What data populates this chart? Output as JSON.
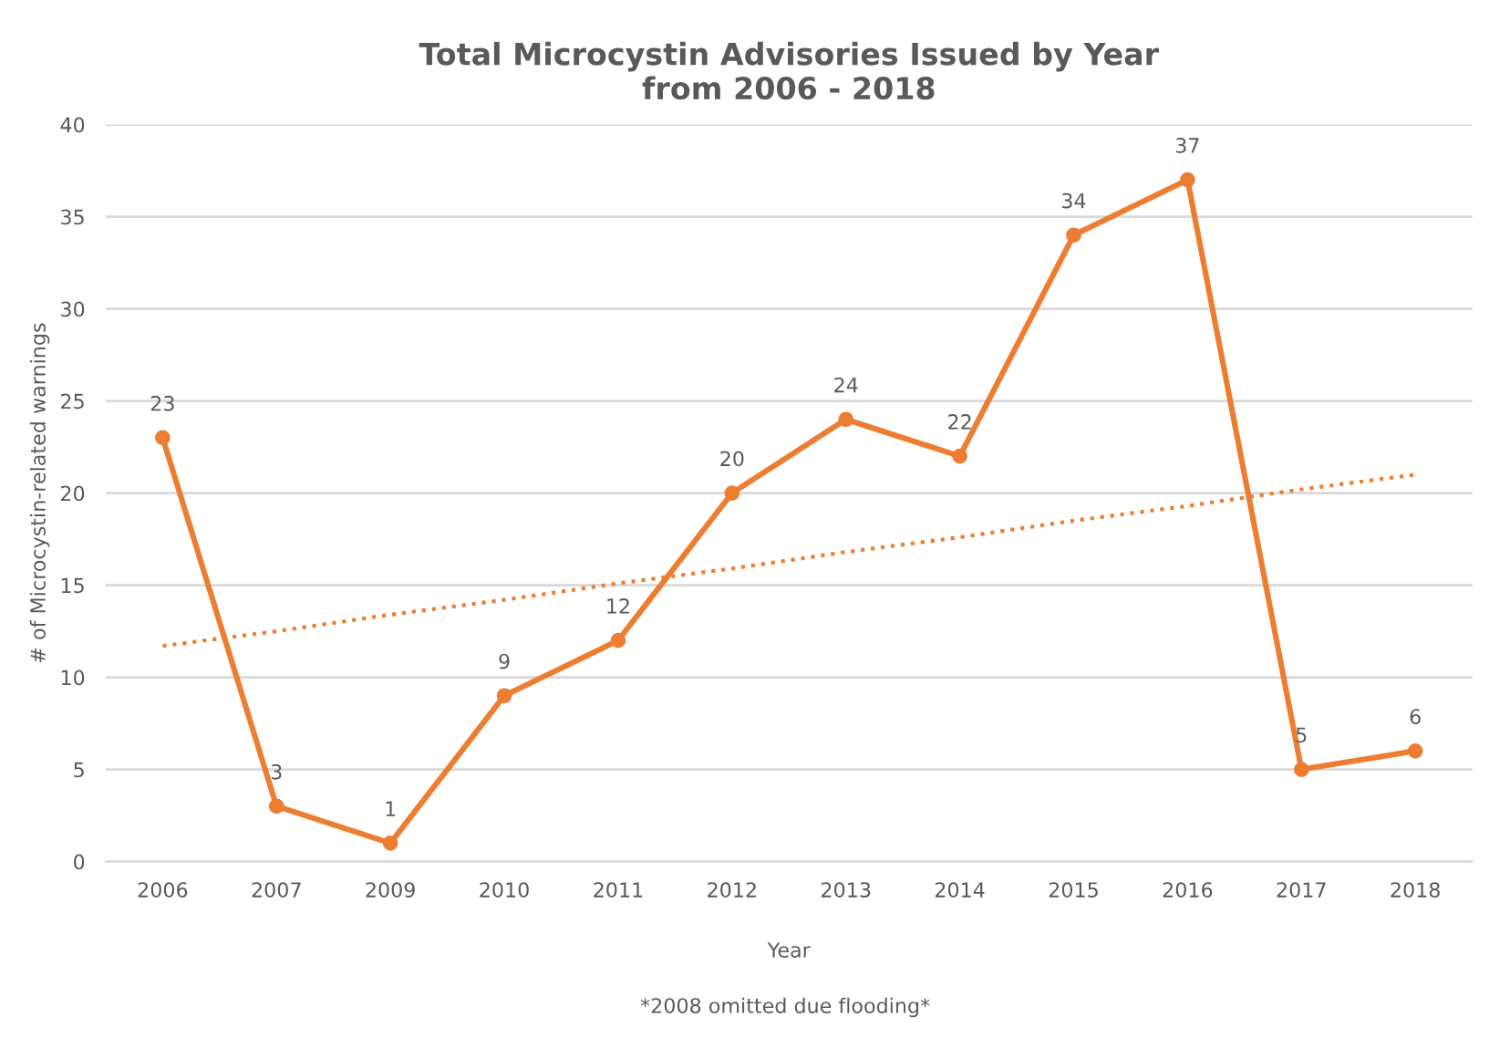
{
  "chart_data": {
    "type": "line",
    "title": "Total Microcystin Advisories Issued by Year\nfrom 2006 - 2018",
    "xlabel": "Year",
    "ylabel": "# of Microcystin-related warnings",
    "categories": [
      "2006",
      "2007",
      "2009",
      "2010",
      "2011",
      "2012",
      "2013",
      "2014",
      "2015",
      "2016",
      "2017",
      "2018"
    ],
    "series": [
      {
        "color": "#ed7d31",
        "values": [
          23,
          3,
          1,
          9,
          12,
          20,
          24,
          22,
          34,
          37,
          5,
          6
        ],
        "marker": "circle",
        "line_style": "solid",
        "data_labels": true
      },
      {
        "type": "line",
        "color": "#ed7d31",
        "values": [
          11.7,
          12.5,
          13.4,
          14.2,
          15.1,
          15.9,
          16.8,
          17.6,
          18.5,
          19.3,
          20.2,
          21.0
        ],
        "marker": "none",
        "line_style": "dotted"
      }
    ],
    "ylim": [
      0,
      40
    ],
    "yticks": [
      0,
      5,
      10,
      15,
      20,
      25,
      30,
      35,
      40
    ],
    "grid": "y",
    "legend": false,
    "annotations": [
      "*2008 omitted due flooding*"
    ]
  }
}
